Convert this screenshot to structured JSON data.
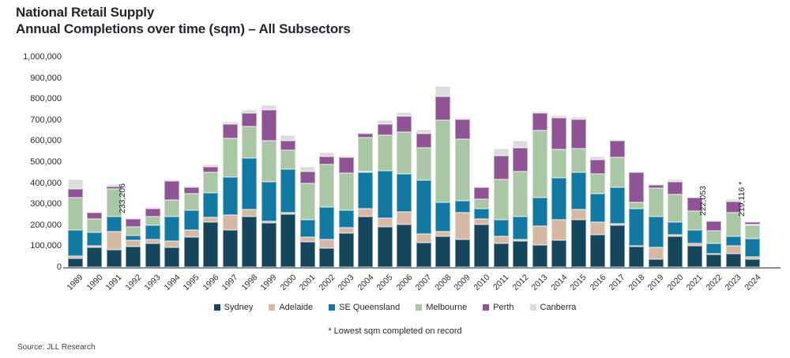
{
  "header": {
    "title1": "National Retail Supply",
    "title2": "Annual Completions over time (sqm) – All Subsectors"
  },
  "note": "* Lowest sqm completed on record",
  "source": "Source: JLL Research",
  "chart_data": {
    "type": "bar",
    "stacked": true,
    "title": "Annual Completions over time (sqm) – All Subsectors",
    "xlabel": "",
    "ylabel": "",
    "ylim": [
      0,
      1000000
    ],
    "grid": false,
    "legend_position": "bottom",
    "y_ticks": [
      "0",
      "100,000",
      "200,000",
      "300,000",
      "400,000",
      "500,000",
      "600,000",
      "700,000",
      "800,000",
      "900,000",
      "1,000,000"
    ],
    "categories": [
      "1989",
      "1990",
      "1991",
      "1992",
      "1993",
      "1994",
      "1995",
      "1996",
      "1997",
      "1998",
      "1999",
      "2000",
      "2001",
      "2002",
      "2003",
      "2004",
      "2005",
      "2006",
      "2007",
      "2008",
      "2009",
      "2010",
      "2011",
      "2012",
      "2013",
      "2014",
      "2015",
      "2016",
      "2017",
      "2018",
      "2019",
      "2020",
      "2021",
      "2022",
      "2023",
      "2024"
    ],
    "series": [
      {
        "name": "Sydney",
        "color": "#15465b",
        "values": [
          41000,
          95000,
          83000,
          98206,
          113000,
          95000,
          142000,
          215000,
          177000,
          239000,
          209000,
          253000,
          120000,
          90000,
          162000,
          240000,
          193000,
          202000,
          115000,
          145000,
          130000,
          203000,
          113000,
          123000,
          105000,
          129000,
          224000,
          155000,
          200000,
          98000,
          38000,
          148000,
          103000,
          60053,
          65000,
          38116
        ]
      },
      {
        "name": "Adelaide",
        "color": "#d5b8a4",
        "values": [
          13000,
          5000,
          88000,
          28000,
          20000,
          28000,
          35000,
          20000,
          71000,
          35000,
          9000,
          5000,
          23000,
          43000,
          25000,
          40000,
          41000,
          62000,
          42000,
          25000,
          130000,
          25000,
          34000,
          9000,
          90000,
          96000,
          50000,
          60000,
          6000,
          4000,
          56000,
          6000,
          8000,
          3000,
          35000,
          10000
        ]
      },
      {
        "name": "SE Queensland",
        "color": "#1279a3",
        "values": [
          122000,
          64000,
          71000,
          25000,
          68000,
          119000,
          94000,
          118000,
          182000,
          245000,
          188000,
          207000,
          81000,
          154000,
          84000,
          173000,
          225000,
          180000,
          255000,
          140000,
          55000,
          50000,
          79000,
          107000,
          134000,
          201000,
          176000,
          135000,
          172000,
          175000,
          147000,
          61000,
          65000,
          50000,
          48000,
          88000
        ]
      },
      {
        "name": "Melbourne",
        "color": "#a9c6a5",
        "values": [
          154000,
          64000,
          129000,
          41000,
          38000,
          78000,
          78000,
          98000,
          182000,
          150000,
          194000,
          91000,
          175000,
          201000,
          175000,
          163000,
          170000,
          198000,
          156000,
          389000,
          294000,
          47000,
          192000,
          216000,
          322000,
          135000,
          115000,
          94000,
          145000,
          30000,
          135000,
          129000,
          90000,
          60000,
          113000,
          65000
        ]
      },
      {
        "name": "Perth",
        "color": "#8e5494",
        "values": [
          41000,
          32000,
          13000,
          37000,
          38000,
          88000,
          29000,
          28000,
          69000,
          63000,
          148000,
          44000,
          56000,
          38000,
          75000,
          18000,
          50000,
          77000,
          69000,
          113000,
          94000,
          53000,
          112000,
          113000,
          83000,
          148000,
          138000,
          66000,
          80000,
          145000,
          15000,
          63000,
          66000,
          46000,
          50000,
          15000
        ]
      },
      {
        "name": "Canberra",
        "color": "#dcdcdb",
        "values": [
          46000,
          5000,
          9000,
          4000,
          10000,
          8000,
          9000,
          8000,
          9000,
          16000,
          21000,
          28000,
          23000,
          19000,
          10000,
          5000,
          19000,
          18000,
          19000,
          50000,
          8000,
          0,
          33000,
          35000,
          8000,
          12000,
          13000,
          17000,
          2000,
          0,
          2000,
          9000,
          0,
          3000,
          12000,
          3000
        ]
      }
    ],
    "annotations": [
      {
        "category": "1992",
        "label": "233,206"
      },
      {
        "category": "2022",
        "label": "222,053"
      },
      {
        "category": "2024",
        "label": "219,116  *"
      }
    ]
  }
}
